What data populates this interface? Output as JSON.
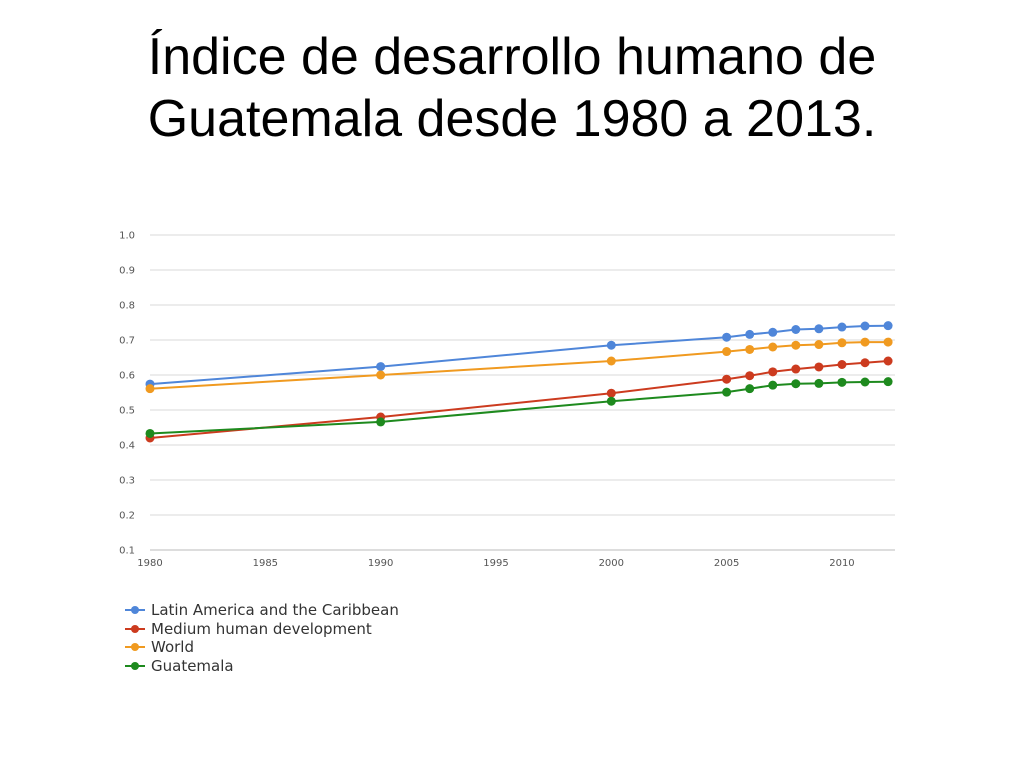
{
  "slide": {
    "title_line1": "Índice de desarrollo humano de",
    "title_line2": "Guatemala desde 1980 a 2013."
  },
  "chart_data": {
    "type": "line",
    "title": "",
    "xlabel": "",
    "ylabel": "",
    "xlim": [
      1980,
      2012.3
    ],
    "ylim": [
      0.1,
      1.0
    ],
    "x_ticks": [
      "1980",
      "1985",
      "1990",
      "1995",
      "2000",
      "2005",
      "2010"
    ],
    "y_ticks": [
      "1.0",
      "0.9",
      "0.8",
      "0.7",
      "0.6",
      "0.5",
      "0.4",
      "0.3",
      "0.2",
      "0.1"
    ],
    "grid": true,
    "legend_position": "bottom-left",
    "x": [
      1980,
      1990,
      2000,
      2005,
      2006,
      2007,
      2008,
      2009,
      2010,
      2011,
      2012
    ],
    "series": [
      {
        "name": "Latin America and the Caribbean",
        "color": "#4f86d9",
        "values": [
          0.574,
          0.624,
          0.685,
          0.708,
          0.716,
          0.722,
          0.73,
          0.732,
          0.737,
          0.74,
          0.741
        ]
      },
      {
        "name": "Medium human development",
        "color": "#cc3b1f",
        "values": [
          0.42,
          0.48,
          0.548,
          0.588,
          0.598,
          0.609,
          0.617,
          0.623,
          0.63,
          0.635,
          0.64
        ]
      },
      {
        "name": "World",
        "color": "#f09a20",
        "values": [
          0.561,
          0.6,
          0.64,
          0.667,
          0.673,
          0.68,
          0.685,
          0.687,
          0.692,
          0.694,
          0.694
        ]
      },
      {
        "name": "Guatemala",
        "color": "#1e8a1e",
        "values": [
          0.433,
          0.466,
          0.525,
          0.551,
          0.561,
          0.571,
          0.575,
          0.576,
          0.579,
          0.58,
          0.581
        ]
      }
    ]
  }
}
